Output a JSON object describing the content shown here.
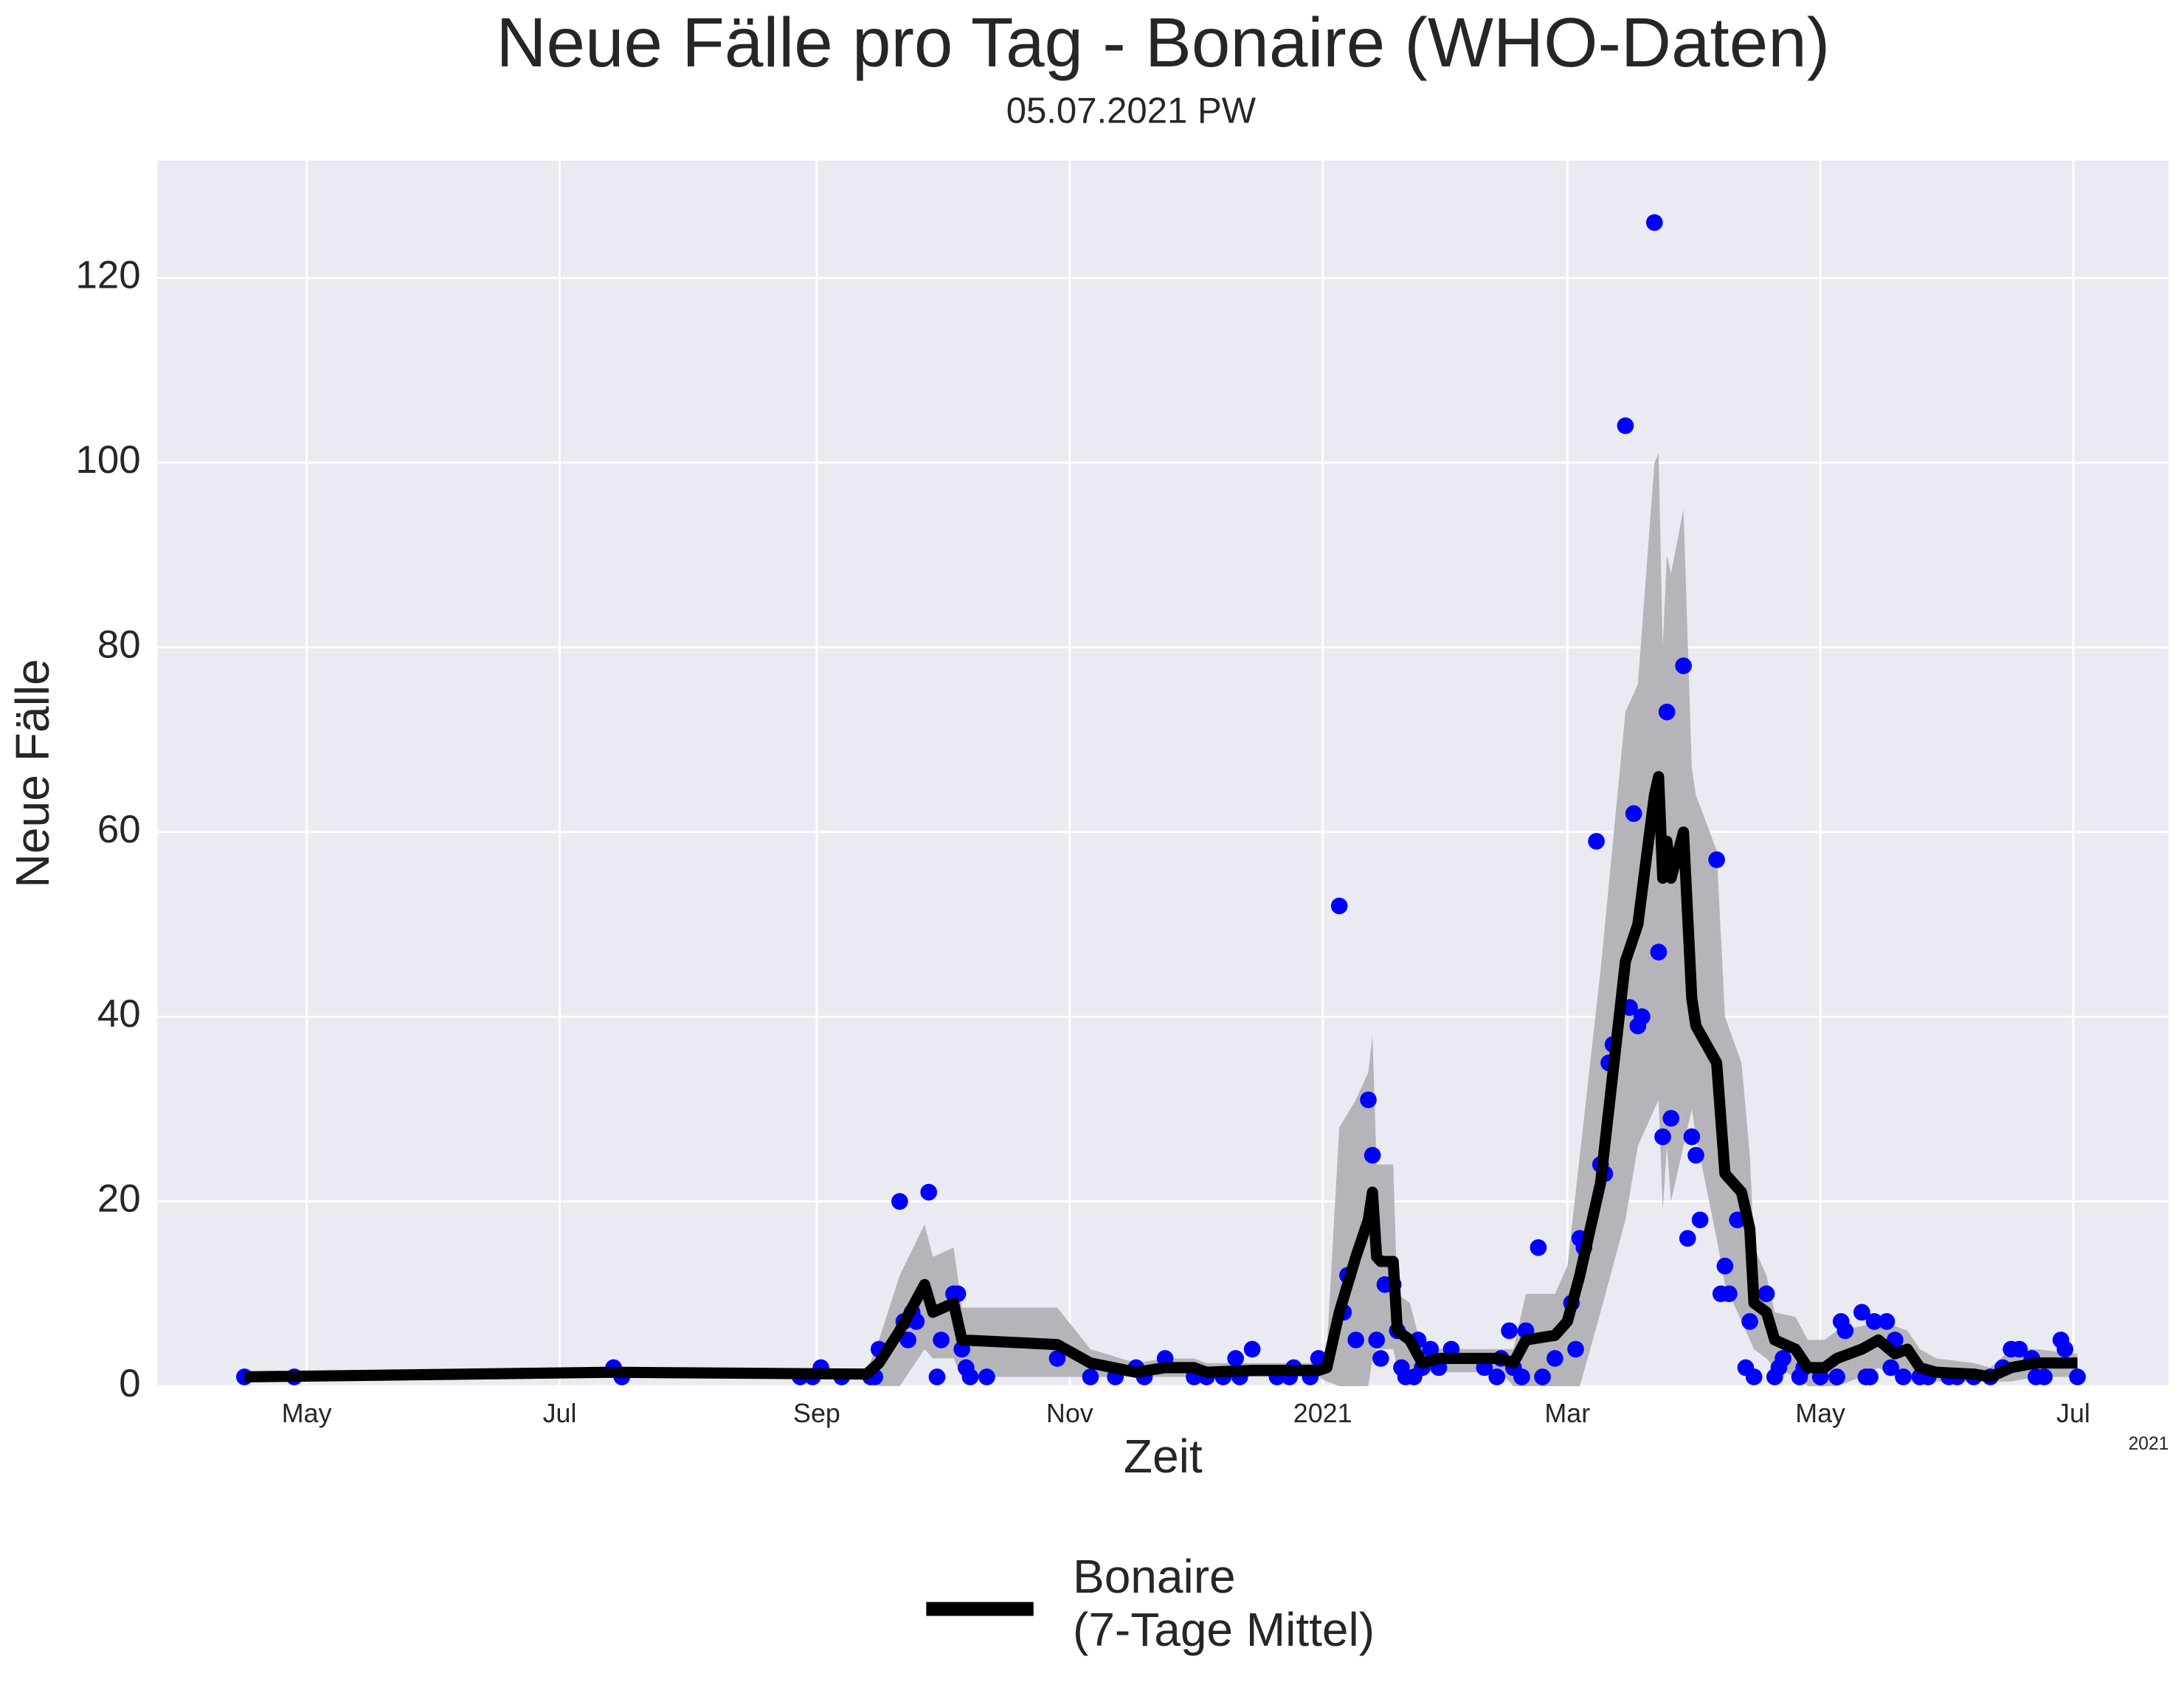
{
  "chart_data": {
    "type": "line",
    "title": "Neue Fälle pro Tag - Bonaire (WHO-Daten)",
    "subtitle": "05.07.2021 PW",
    "xlabel": "Zeit",
    "ylabel": "Neue Fälle",
    "x_offset_label": "2021",
    "xlim": [
      "2020-03-26",
      "2021-07-24"
    ],
    "xticks": [
      {
        "value": "2020-05-01",
        "label": "May"
      },
      {
        "value": "2020-07-01",
        "label": "Jul"
      },
      {
        "value": "2020-09-01",
        "label": "Sep"
      },
      {
        "value": "2020-11-01",
        "label": "Nov"
      },
      {
        "value": "2021-01-01",
        "label": "2021"
      },
      {
        "value": "2021-03-01",
        "label": "Mar"
      },
      {
        "value": "2021-05-01",
        "label": "May"
      },
      {
        "value": "2021-07-01",
        "label": "Jul"
      }
    ],
    "ylim": [
      0,
      132.7
    ],
    "yticks": [
      0,
      20,
      40,
      60,
      80,
      100,
      120
    ],
    "grid": true,
    "legend": "bottom",
    "points": {
      "color": "blue",
      "x": [
        "2020-04-16",
        "2020-04-28",
        "2020-07-14",
        "2020-07-16",
        "2020-08-28",
        "2020-08-31",
        "2020-09-02",
        "2020-09-07",
        "2020-09-14",
        "2020-09-15",
        "2020-09-16",
        "2020-09-21",
        "2020-09-22",
        "2020-09-23",
        "2020-09-24",
        "2020-09-25",
        "2020-09-28",
        "2020-09-30",
        "2020-10-01",
        "2020-10-04",
        "2020-10-05",
        "2020-10-06",
        "2020-10-07",
        "2020-10-08",
        "2020-10-12",
        "2020-10-29",
        "2020-11-06",
        "2020-11-12",
        "2020-11-17",
        "2020-11-19",
        "2020-11-24",
        "2020-12-01",
        "2020-12-04",
        "2020-12-08",
        "2020-12-11",
        "2020-12-12",
        "2020-12-15",
        "2020-12-21",
        "2020-12-24",
        "2020-12-25",
        "2020-12-29",
        "2020-12-31",
        "2021-01-05",
        "2021-01-06",
        "2021-01-07",
        "2021-01-09",
        "2021-01-12",
        "2021-01-13",
        "2021-01-14",
        "2021-01-15",
        "2021-01-16",
        "2021-01-18",
        "2021-01-19",
        "2021-01-20",
        "2021-01-21",
        "2021-01-23",
        "2021-01-24",
        "2021-01-25",
        "2021-01-27",
        "2021-01-29",
        "2021-02-01",
        "2021-02-09",
        "2021-02-12",
        "2021-02-13",
        "2021-02-15",
        "2021-02-16",
        "2021-02-18",
        "2021-02-19",
        "2021-02-22",
        "2021-02-23",
        "2021-02-26",
        "2021-03-02",
        "2021-03-03",
        "2021-03-04",
        "2021-03-05",
        "2021-03-08",
        "2021-03-09",
        "2021-03-10",
        "2021-03-11",
        "2021-03-12",
        "2021-03-15",
        "2021-03-16",
        "2021-03-17",
        "2021-03-18",
        "2021-03-19",
        "2021-03-22",
        "2021-03-23",
        "2021-03-24",
        "2021-03-25",
        "2021-03-26",
        "2021-03-29",
        "2021-03-30",
        "2021-03-31",
        "2021-04-01",
        "2021-04-02",
        "2021-04-06",
        "2021-04-07",
        "2021-04-08",
        "2021-04-09",
        "2021-04-11",
        "2021-04-13",
        "2021-04-14",
        "2021-04-15",
        "2021-04-18",
        "2021-04-20",
        "2021-04-21",
        "2021-04-22",
        "2021-04-26",
        "2021-04-27",
        "2021-05-01",
        "2021-05-05",
        "2021-05-06",
        "2021-05-07",
        "2021-05-11",
        "2021-05-12",
        "2021-05-13",
        "2021-05-14",
        "2021-05-17",
        "2021-05-18",
        "2021-05-19",
        "2021-05-21",
        "2021-05-25",
        "2021-05-27",
        "2021-06-01",
        "2021-06-03",
        "2021-06-07",
        "2021-06-11",
        "2021-06-14",
        "2021-06-16",
        "2021-06-18",
        "2021-06-21",
        "2021-06-22",
        "2021-06-24",
        "2021-06-28",
        "2021-06-29",
        "2021-07-02"
      ],
      "values": [
        1,
        1,
        2,
        1,
        1,
        1,
        2,
        1,
        1,
        1,
        4,
        20,
        7,
        5,
        8,
        7,
        21,
        1,
        5,
        10,
        10,
        4,
        2,
        1,
        1,
        3,
        1,
        1,
        2,
        1,
        3,
        1,
        1,
        1,
        3,
        1,
        4,
        1,
        1,
        2,
        1,
        3,
        52,
        8,
        12,
        5,
        31,
        25,
        5,
        3,
        11,
        11,
        6,
        2,
        1,
        1,
        5,
        2,
        4,
        2,
        4,
        2,
        1,
        3,
        6,
        2,
        1,
        6,
        15,
        1,
        3,
        9,
        4,
        16,
        15,
        59,
        24,
        23,
        35,
        37,
        104,
        41,
        62,
        39,
        40,
        126,
        47,
        27,
        73,
        29,
        78,
        16,
        27,
        25,
        18,
        57,
        10,
        13,
        10,
        18,
        2,
        7,
        1,
        10,
        1,
        2,
        3,
        1,
        2,
        1,
        1,
        7,
        6,
        8,
        1,
        1,
        7,
        7,
        2,
        5,
        1,
        1,
        1,
        1,
        1,
        1,
        1,
        2,
        4,
        4,
        3,
        1,
        1,
        5,
        4,
        1
      ]
    },
    "series": [
      {
        "name": "Bonaire\n(7-Tage Mittel)",
        "color": "black",
        "band_color": "#b5b5b9",
        "x": [
          "2020-04-16",
          "2020-07-14",
          "2020-09-13",
          "2020-09-16",
          "2020-09-21",
          "2020-09-27",
          "2020-09-29",
          "2020-10-04",
          "2020-10-06",
          "2020-10-29",
          "2020-11-06",
          "2020-11-17",
          "2020-11-24",
          "2020-12-01",
          "2020-12-04",
          "2020-12-15",
          "2020-12-31",
          "2021-01-02",
          "2021-01-05",
          "2021-01-09",
          "2021-01-12",
          "2021-01-13",
          "2021-01-14",
          "2021-01-15",
          "2021-01-18",
          "2021-01-19",
          "2021-01-22",
          "2021-01-25",
          "2021-01-29",
          "2021-02-13",
          "2021-02-16",
          "2021-02-19",
          "2021-02-26",
          "2021-03-01",
          "2021-03-04",
          "2021-03-09",
          "2021-03-15",
          "2021-03-18",
          "2021-03-22",
          "2021-03-23",
          "2021-03-24",
          "2021-03-25",
          "2021-03-26",
          "2021-03-29",
          "2021-03-31",
          "2021-04-01",
          "2021-04-06",
          "2021-04-08",
          "2021-04-12",
          "2021-04-14",
          "2021-04-15",
          "2021-04-18",
          "2021-04-20",
          "2021-04-25",
          "2021-04-28",
          "2021-05-02",
          "2021-05-05",
          "2021-05-11",
          "2021-05-15",
          "2021-05-19",
          "2021-05-22",
          "2021-05-25",
          "2021-05-29",
          "2021-06-07",
          "2021-06-11",
          "2021-06-16",
          "2021-06-22",
          "2021-07-02"
        ],
        "values": [
          1,
          1.5,
          1.3,
          2.5,
          6,
          11,
          8,
          9,
          5,
          4.5,
          2.5,
          1.5,
          2,
          2,
          1.5,
          1.7,
          1.7,
          2,
          8,
          14,
          18,
          21,
          14,
          13.5,
          13.5,
          6,
          5,
          2.5,
          3,
          3,
          2.5,
          5,
          5.5,
          7,
          12,
          22,
          46,
          50,
          64,
          66,
          55,
          59,
          55,
          60,
          42,
          39,
          35,
          23,
          21,
          17,
          9,
          8,
          5,
          4,
          2,
          2,
          3,
          4,
          5,
          3.5,
          4,
          2,
          1.5,
          1.3,
          1,
          2,
          2.5,
          2.5
        ],
        "lower": [
          0.8,
          1.3,
          1,
          0,
          0,
          4,
          3,
          3,
          1,
          1,
          1,
          1,
          1,
          1,
          1,
          1,
          1,
          0.5,
          0,
          0,
          0,
          3,
          4,
          4,
          4,
          2,
          2,
          1.5,
          1.5,
          1.5,
          0,
          0,
          0,
          0,
          0,
          8,
          18,
          26,
          30,
          31,
          19,
          26,
          20,
          26,
          30,
          27,
          16,
          11,
          7,
          5,
          4,
          3,
          2,
          1,
          0,
          0,
          0,
          1,
          2,
          1,
          1,
          0.5,
          0.5,
          0.5,
          0.5,
          0.5,
          1,
          1
        ],
        "upper": [
          1.2,
          1.7,
          1.6,
          5,
          12,
          17.5,
          14,
          15,
          8.5,
          8.5,
          4,
          2.5,
          3,
          3,
          2.5,
          2.5,
          2.5,
          4,
          28,
          31,
          34,
          38,
          24,
          24,
          24,
          10,
          9,
          4,
          4,
          4,
          4,
          10,
          10,
          13,
          25,
          45,
          73,
          76,
          100,
          101,
          80,
          90,
          88,
          95,
          67,
          64,
          58,
          40,
          35,
          25,
          15,
          12,
          8,
          7.5,
          5,
          5,
          6,
          6.5,
          7,
          6.5,
          6,
          4,
          3,
          2.5,
          2,
          4,
          4,
          3.5
        ]
      }
    ]
  }
}
